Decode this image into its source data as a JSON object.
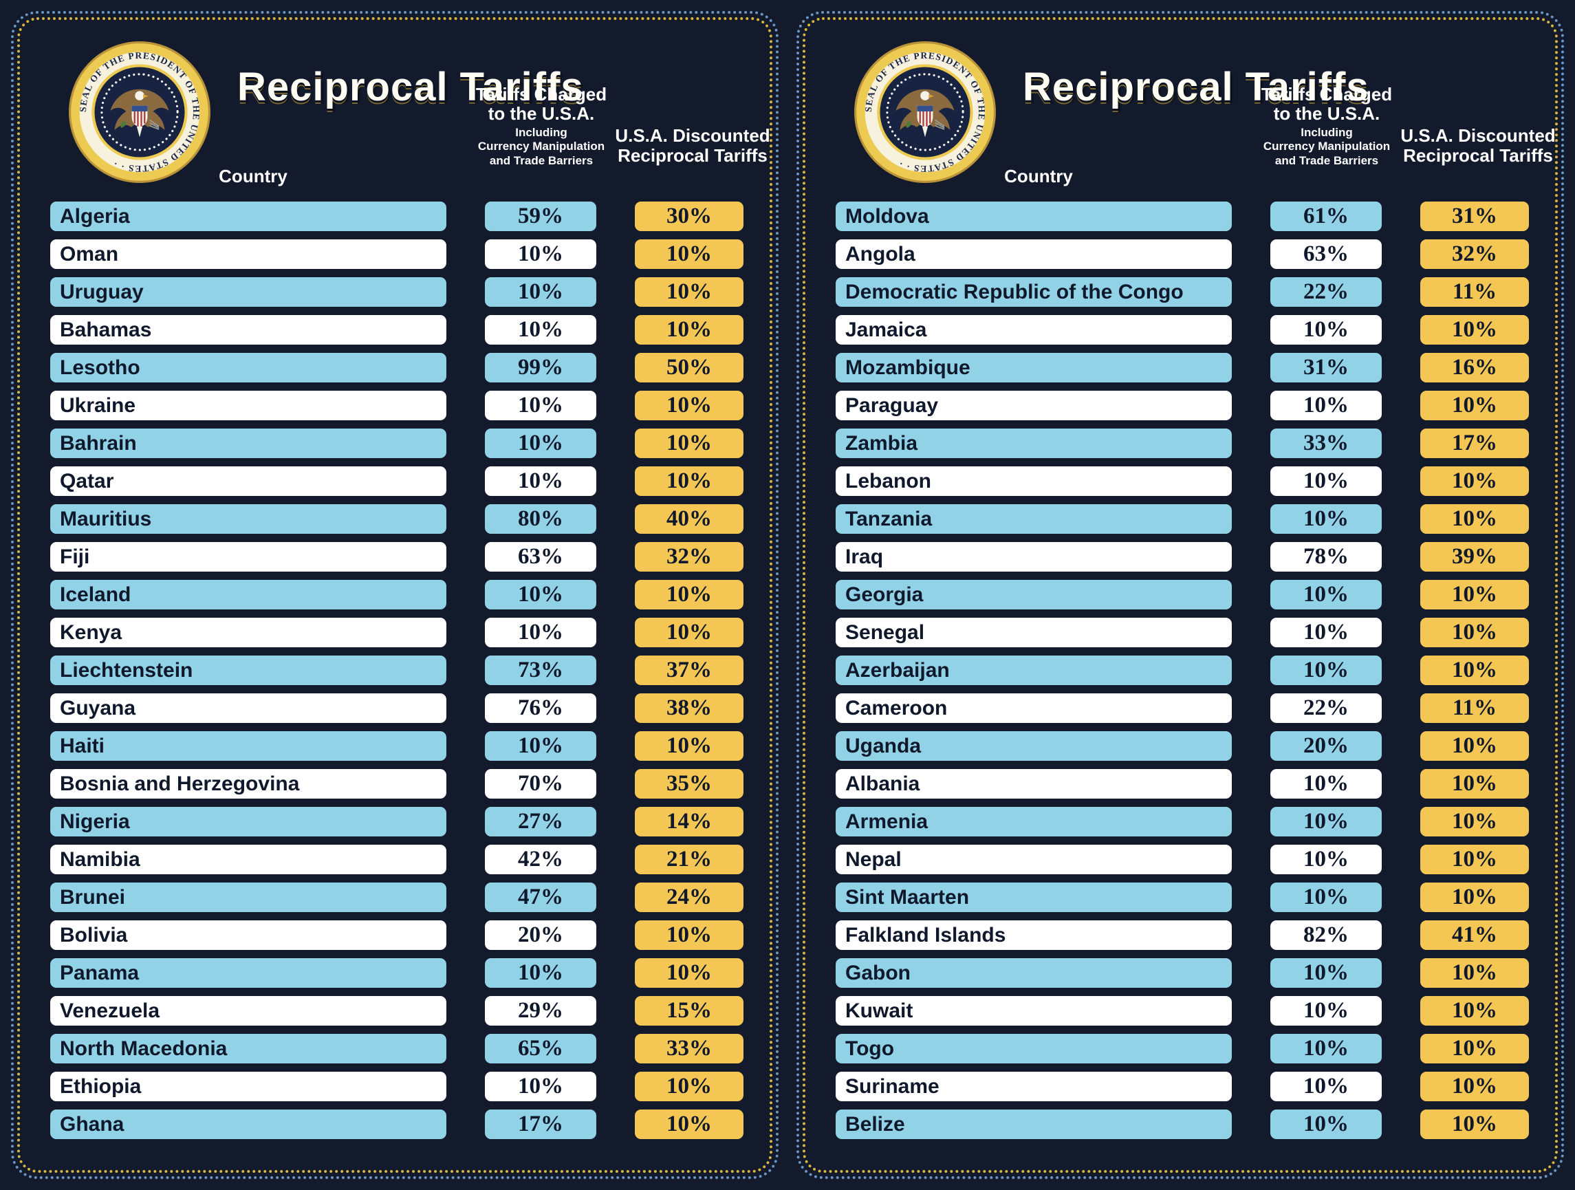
{
  "colors": {
    "background": "#131a2b",
    "border_blue": "#6b95c4",
    "border_gold": "#dab73f",
    "row_blue": "#92d2e6",
    "row_white": "#ffffff",
    "tariff_gold": "#f4c653",
    "text_dark": "#10182c",
    "header_text": "#ffffff",
    "seal_gold": "#edcb52",
    "seal_navy": "#182342"
  },
  "seal": {
    "ring_text": "SEAL OF THE PRESIDENT OF THE UNITED STATES · ·"
  },
  "panels": [
    {
      "title": "Reciprocal Tariffs",
      "country_header": "Country",
      "charged_header": "Tariffs Charged\nto the U.S.A.",
      "charged_subheader": "Including\nCurrency Manipulation\nand Trade Barriers",
      "discount_header": "U.S.A. Discounted\nReciprocal Tariffs",
      "rows": [
        {
          "country": "Algeria",
          "charged": "59%",
          "discount": "30%"
        },
        {
          "country": "Oman",
          "charged": "10%",
          "discount": "10%"
        },
        {
          "country": "Uruguay",
          "charged": "10%",
          "discount": "10%"
        },
        {
          "country": "Bahamas",
          "charged": "10%",
          "discount": "10%"
        },
        {
          "country": "Lesotho",
          "charged": "99%",
          "discount": "50%"
        },
        {
          "country": "Ukraine",
          "charged": "10%",
          "discount": "10%"
        },
        {
          "country": "Bahrain",
          "charged": "10%",
          "discount": "10%"
        },
        {
          "country": "Qatar",
          "charged": "10%",
          "discount": "10%"
        },
        {
          "country": "Mauritius",
          "charged": "80%",
          "discount": "40%"
        },
        {
          "country": "Fiji",
          "charged": "63%",
          "discount": "32%"
        },
        {
          "country": "Iceland",
          "charged": "10%",
          "discount": "10%"
        },
        {
          "country": "Kenya",
          "charged": "10%",
          "discount": "10%"
        },
        {
          "country": "Liechtenstein",
          "charged": "73%",
          "discount": "37%"
        },
        {
          "country": "Guyana",
          "charged": "76%",
          "discount": "38%"
        },
        {
          "country": "Haiti",
          "charged": "10%",
          "discount": "10%"
        },
        {
          "country": "Bosnia and Herzegovina",
          "charged": "70%",
          "discount": "35%"
        },
        {
          "country": "Nigeria",
          "charged": "27%",
          "discount": "14%"
        },
        {
          "country": "Namibia",
          "charged": "42%",
          "discount": "21%"
        },
        {
          "country": "Brunei",
          "charged": "47%",
          "discount": "24%"
        },
        {
          "country": "Bolivia",
          "charged": "20%",
          "discount": "10%"
        },
        {
          "country": "Panama",
          "charged": "10%",
          "discount": "10%"
        },
        {
          "country": "Venezuela",
          "charged": "29%",
          "discount": "15%"
        },
        {
          "country": "North Macedonia",
          "charged": "65%",
          "discount": "33%"
        },
        {
          "country": "Ethiopia",
          "charged": "10%",
          "discount": "10%"
        },
        {
          "country": "Ghana",
          "charged": "17%",
          "discount": "10%"
        }
      ]
    },
    {
      "title": "Reciprocal Tariffs",
      "country_header": "Country",
      "charged_header": "Tariffs Charged\nto the U.S.A.",
      "charged_subheader": "Including\nCurrency Manipulation\nand Trade Barriers",
      "discount_header": "U.S.A. Discounted\nReciprocal Tariffs",
      "rows": [
        {
          "country": "Moldova",
          "charged": "61%",
          "discount": "31%"
        },
        {
          "country": "Angola",
          "charged": "63%",
          "discount": "32%"
        },
        {
          "country": "Democratic Republic of the Congo",
          "charged": "22%",
          "discount": "11%"
        },
        {
          "country": "Jamaica",
          "charged": "10%",
          "discount": "10%"
        },
        {
          "country": "Mozambique",
          "charged": "31%",
          "discount": "16%"
        },
        {
          "country": "Paraguay",
          "charged": "10%",
          "discount": "10%"
        },
        {
          "country": "Zambia",
          "charged": "33%",
          "discount": "17%"
        },
        {
          "country": "Lebanon",
          "charged": "10%",
          "discount": "10%"
        },
        {
          "country": "Tanzania",
          "charged": "10%",
          "discount": "10%"
        },
        {
          "country": "Iraq",
          "charged": "78%",
          "discount": "39%"
        },
        {
          "country": "Georgia",
          "charged": "10%",
          "discount": "10%"
        },
        {
          "country": "Senegal",
          "charged": "10%",
          "discount": "10%"
        },
        {
          "country": "Azerbaijan",
          "charged": "10%",
          "discount": "10%"
        },
        {
          "country": "Cameroon",
          "charged": "22%",
          "discount": "11%"
        },
        {
          "country": "Uganda",
          "charged": "20%",
          "discount": "10%"
        },
        {
          "country": "Albania",
          "charged": "10%",
          "discount": "10%"
        },
        {
          "country": "Armenia",
          "charged": "10%",
          "discount": "10%"
        },
        {
          "country": "Nepal",
          "charged": "10%",
          "discount": "10%"
        },
        {
          "country": "Sint Maarten",
          "charged": "10%",
          "discount": "10%"
        },
        {
          "country": "Falkland Islands",
          "charged": "82%",
          "discount": "41%"
        },
        {
          "country": "Gabon",
          "charged": "10%",
          "discount": "10%"
        },
        {
          "country": "Kuwait",
          "charged": "10%",
          "discount": "10%"
        },
        {
          "country": "Togo",
          "charged": "10%",
          "discount": "10%"
        },
        {
          "country": "Suriname",
          "charged": "10%",
          "discount": "10%"
        },
        {
          "country": "Belize",
          "charged": "10%",
          "discount": "10%"
        }
      ]
    }
  ],
  "chart_data": [
    {
      "type": "table",
      "title": "Reciprocal Tariffs",
      "columns": [
        "Country",
        "Tariffs Charged to the U.S.A. Including Currency Manipulation and Trade Barriers",
        "U.S.A. Discounted Reciprocal Tariffs"
      ],
      "rows": [
        [
          "Algeria",
          "59%",
          "30%"
        ],
        [
          "Oman",
          "10%",
          "10%"
        ],
        [
          "Uruguay",
          "10%",
          "10%"
        ],
        [
          "Bahamas",
          "10%",
          "10%"
        ],
        [
          "Lesotho",
          "99%",
          "50%"
        ],
        [
          "Ukraine",
          "10%",
          "10%"
        ],
        [
          "Bahrain",
          "10%",
          "10%"
        ],
        [
          "Qatar",
          "10%",
          "10%"
        ],
        [
          "Mauritius",
          "80%",
          "40%"
        ],
        [
          "Fiji",
          "63%",
          "32%"
        ],
        [
          "Iceland",
          "10%",
          "10%"
        ],
        [
          "Kenya",
          "10%",
          "10%"
        ],
        [
          "Liechtenstein",
          "73%",
          "37%"
        ],
        [
          "Guyana",
          "76%",
          "38%"
        ],
        [
          "Haiti",
          "10%",
          "10%"
        ],
        [
          "Bosnia and Herzegovina",
          "70%",
          "35%"
        ],
        [
          "Nigeria",
          "27%",
          "14%"
        ],
        [
          "Namibia",
          "42%",
          "21%"
        ],
        [
          "Brunei",
          "47%",
          "24%"
        ],
        [
          "Bolivia",
          "20%",
          "10%"
        ],
        [
          "Panama",
          "10%",
          "10%"
        ],
        [
          "Venezuela",
          "29%",
          "15%"
        ],
        [
          "North Macedonia",
          "65%",
          "33%"
        ],
        [
          "Ethiopia",
          "10%",
          "10%"
        ],
        [
          "Ghana",
          "17%",
          "10%"
        ]
      ]
    },
    {
      "type": "table",
      "title": "Reciprocal Tariffs",
      "columns": [
        "Country",
        "Tariffs Charged to the U.S.A. Including Currency Manipulation and Trade Barriers",
        "U.S.A. Discounted Reciprocal Tariffs"
      ],
      "rows": [
        [
          "Moldova",
          "61%",
          "31%"
        ],
        [
          "Angola",
          "63%",
          "32%"
        ],
        [
          "Democratic Republic of the Congo",
          "22%",
          "11%"
        ],
        [
          "Jamaica",
          "10%",
          "10%"
        ],
        [
          "Mozambique",
          "31%",
          "16%"
        ],
        [
          "Paraguay",
          "10%",
          "10%"
        ],
        [
          "Zambia",
          "33%",
          "17%"
        ],
        [
          "Lebanon",
          "10%",
          "10%"
        ],
        [
          "Tanzania",
          "10%",
          "10%"
        ],
        [
          "Iraq",
          "78%",
          "39%"
        ],
        [
          "Georgia",
          "10%",
          "10%"
        ],
        [
          "Senegal",
          "10%",
          "10%"
        ],
        [
          "Azerbaijan",
          "10%",
          "10%"
        ],
        [
          "Cameroon",
          "22%",
          "11%"
        ],
        [
          "Uganda",
          "20%",
          "10%"
        ],
        [
          "Albania",
          "10%",
          "10%"
        ],
        [
          "Armenia",
          "10%",
          "10%"
        ],
        [
          "Nepal",
          "10%",
          "10%"
        ],
        [
          "Sint Maarten",
          "10%",
          "10%"
        ],
        [
          "Falkland Islands",
          "82%",
          "41%"
        ],
        [
          "Gabon",
          "10%",
          "10%"
        ],
        [
          "Kuwait",
          "10%",
          "10%"
        ],
        [
          "Togo",
          "10%",
          "10%"
        ],
        [
          "Suriname",
          "10%",
          "10%"
        ],
        [
          "Belize",
          "10%",
          "10%"
        ]
      ]
    }
  ]
}
